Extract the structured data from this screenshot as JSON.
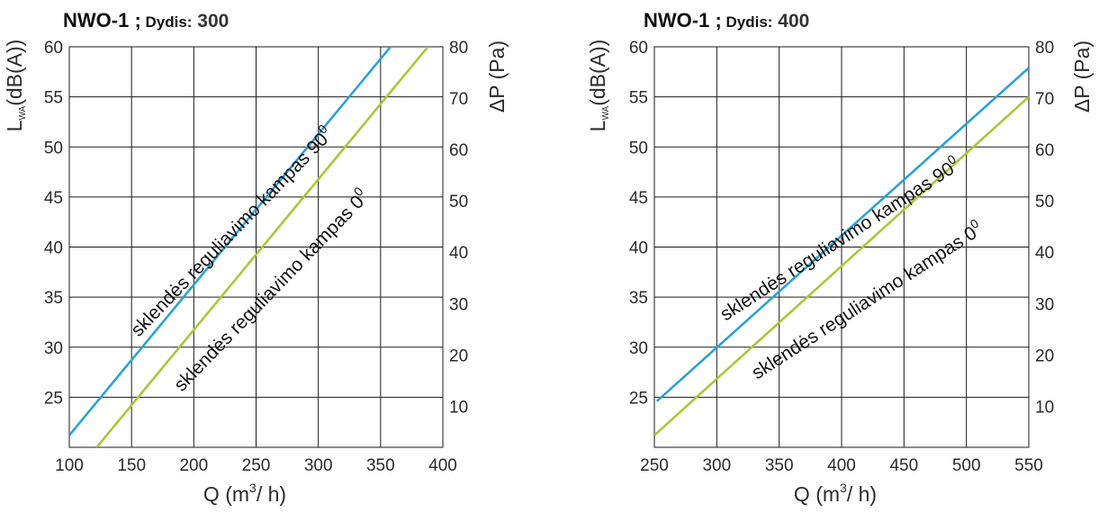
{
  "chart_data": [
    {
      "type": "line",
      "title": {
        "code": "NWO-1",
        "sep": ";",
        "size_label": "Dydis:",
        "size_value": "300"
      },
      "xlabel": {
        "base": "Q (m",
        "sup": "3",
        "rest": "/ h)"
      },
      "ylabel_left": {
        "base": "L",
        "sub": "WA",
        "rest": "(dB(A))"
      },
      "ylabel_right": "ΔP (Pa)",
      "xlim": [
        100,
        400
      ],
      "ylim_left": [
        20,
        60
      ],
      "ylim_right": [
        2,
        80
      ],
      "x_ticks": [
        "100",
        "150",
        "200",
        "250",
        "300",
        "350",
        "400"
      ],
      "y_ticks_left": [
        "25",
        "30",
        "35",
        "40",
        "45",
        "50",
        "55",
        "60"
      ],
      "y_ticks_right": [
        "10",
        "20",
        "30",
        "40",
        "50",
        "60",
        "70",
        "80"
      ],
      "grid": true,
      "series": [
        {
          "name": "sklendės reguliavimo kampas 90",
          "sup": "0",
          "color": "#2aa3d6",
          "x": [
            100,
            360
          ],
          "y": [
            21.2,
            60.3
          ]
        },
        {
          "name": "sklendės reguliavimo kampas 0",
          "sup": "0",
          "color": "#a8c83a",
          "x": [
            122,
            388
          ],
          "y": [
            20,
            60
          ]
        }
      ]
    },
    {
      "type": "line",
      "title": {
        "code": "NWO-1",
        "sep": ";",
        "size_label": "Dydis:",
        "size_value": "400"
      },
      "xlabel": {
        "base": "Q (m",
        "sup": "3",
        "rest": "/ h)"
      },
      "ylabel_left": {
        "base": "L",
        "sub": "WA",
        "rest": "(dB(A))"
      },
      "ylabel_right": "ΔP (Pa)",
      "xlim": [
        250,
        550
      ],
      "ylim_left": [
        20,
        60
      ],
      "ylim_right": [
        2,
        80
      ],
      "x_ticks": [
        "250",
        "300",
        "350",
        "400",
        "450",
        "500",
        "550"
      ],
      "y_ticks_left": [
        "25",
        "30",
        "35",
        "40",
        "45",
        "50",
        "55",
        "60"
      ],
      "y_ticks_right": [
        "10",
        "20",
        "30",
        "40",
        "50",
        "60",
        "70",
        "80"
      ],
      "grid": true,
      "series": [
        {
          "name": "sklendės reguliavimo kampas 90",
          "sup": "0",
          "color": "#2aa3d6",
          "x": [
            252,
            550
          ],
          "y": [
            24.6,
            57.9
          ]
        },
        {
          "name": "sklendės reguliavimo kampas 0",
          "sup": "0",
          "color": "#a8c83a",
          "x": [
            250,
            550
          ],
          "y": [
            21.2,
            55
          ]
        }
      ]
    }
  ]
}
